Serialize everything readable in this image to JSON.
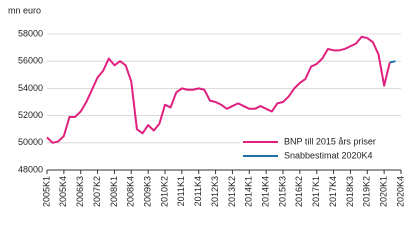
{
  "chart_data": {
    "type": "line",
    "y_label": "mn euro",
    "categories": [
      "2005K1",
      null,
      null,
      "2005K4",
      null,
      null,
      "2006K3",
      null,
      null,
      "2007K2",
      null,
      null,
      "2008K1",
      null,
      null,
      "2008K4",
      null,
      null,
      "2009K3",
      null,
      null,
      "2010K2",
      null,
      null,
      "2011K1",
      null,
      null,
      "2011K4",
      null,
      null,
      "2012K3",
      null,
      null,
      "2013K2",
      null,
      null,
      "2014K1",
      null,
      null,
      "2014K4",
      null,
      null,
      "2015K3",
      null,
      null,
      "2016K2",
      null,
      null,
      "2017K1",
      null,
      null,
      "2017K4",
      null,
      null,
      "2018K3",
      null,
      null,
      "2019K2",
      null,
      null,
      "2020K1",
      null,
      null,
      "2020K4"
    ],
    "series": [
      {
        "name": "BNP till 2015 års priser",
        "color": "#e0207f",
        "values": [
          50400,
          50000,
          50100,
          50500,
          51900,
          51900,
          52300,
          53000,
          53900,
          54800,
          55300,
          56200,
          55700,
          56000,
          55700,
          54500,
          51000,
          50700,
          51300,
          50900,
          51400,
          52800,
          52600,
          53700,
          54000,
          53900,
          53900,
          54000,
          53900,
          53100,
          53000,
          52800,
          52500,
          52700,
          52900,
          52700,
          52500,
          52500,
          52700,
          52500,
          52300,
          52900,
          53000,
          53400,
          54000,
          54400,
          54700,
          55600,
          55800,
          56200,
          56900,
          56800,
          56800,
          56900,
          57100,
          57300,
          57800,
          57700,
          57400,
          56500,
          54200,
          55900,
          null,
          null
        ]
      },
      {
        "name": "Snabbestimat 2020K4",
        "color": "#1f6fa6",
        "values": [
          null,
          null,
          null,
          null,
          null,
          null,
          null,
          null,
          null,
          null,
          null,
          null,
          null,
          null,
          null,
          null,
          null,
          null,
          null,
          null,
          null,
          null,
          null,
          null,
          null,
          null,
          null,
          null,
          null,
          null,
          null,
          null,
          null,
          null,
          null,
          null,
          null,
          null,
          null,
          null,
          null,
          null,
          null,
          null,
          null,
          null,
          null,
          null,
          null,
          null,
          null,
          null,
          null,
          null,
          null,
          null,
          null,
          null,
          null,
          null,
          null,
          55900,
          56000,
          null
        ]
      }
    ],
    "ylim": [
      48000,
      58000
    ],
    "yticks": [
      48000,
      50000,
      52000,
      54000,
      56000,
      58000
    ],
    "grid": true
  }
}
